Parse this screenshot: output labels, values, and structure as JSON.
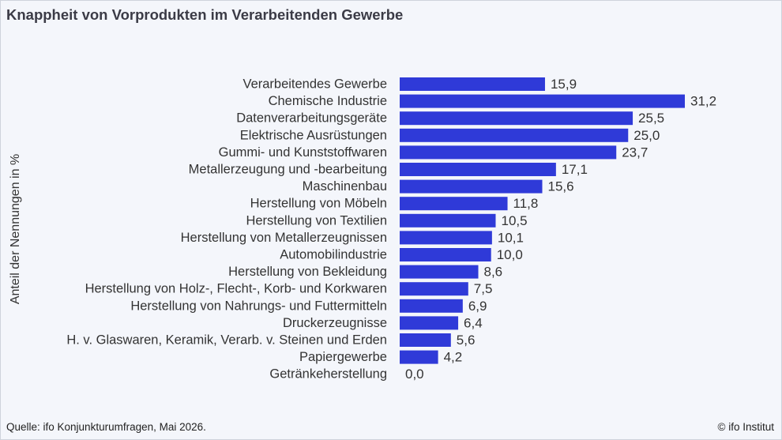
{
  "title": "Knappheit von Vorprodukten im Verarbeitenden Gewerbe",
  "source": "Quelle: ifo Konjunkturumfragen, Mai 2026.",
  "copyright": "© ifo Institut",
  "colors": {
    "bar": "#2f3ad8",
    "background": "#f4f6fb"
  },
  "chart_data": {
    "type": "bar",
    "orientation": "horizontal",
    "ylabel": "Anteil der Nennungen in %",
    "grid": false,
    "legend": "none",
    "xlim": [
      0,
      31.2
    ],
    "categories": [
      "Verarbeitendes Gewerbe",
      "Chemische Industrie",
      "Datenverarbeitungsgeräte",
      "Elektrische Ausrüstungen",
      "Gummi- und Kunststoffwaren",
      "Metallerzeugung und -bearbeitung",
      "Maschinenbau",
      "Herstellung von Möbeln",
      "Herstellung von Textilien",
      "Herstellung von Metallerzeugnissen",
      "Automobilindustrie",
      "Herstellung von Bekleidung",
      "Herstellung von Holz-, Flecht-, Korb- und Korkwaren",
      "Herstellung von Nahrungs- und Futtermitteln",
      "Druckerzeugnisse",
      "H. v. Glaswaren, Keramik, Verarb. v. Steinen und Erden",
      "Papiergewerbe",
      "Getränkeherstellung"
    ],
    "values": [
      15.9,
      31.2,
      25.5,
      25.0,
      23.7,
      17.1,
      15.6,
      11.8,
      10.5,
      10.1,
      10.0,
      8.6,
      7.5,
      6.9,
      6.4,
      5.6,
      4.2,
      0.0
    ],
    "value_labels": [
      "15,9",
      "31,2",
      "25,5",
      "25,0",
      "23,7",
      "17,1",
      "15,6",
      "11,8",
      "10,5",
      "10,1",
      "10,0",
      "8,6",
      "7,5",
      "6,9",
      "6,4",
      "5,6",
      "4,2",
      "0,0"
    ]
  }
}
